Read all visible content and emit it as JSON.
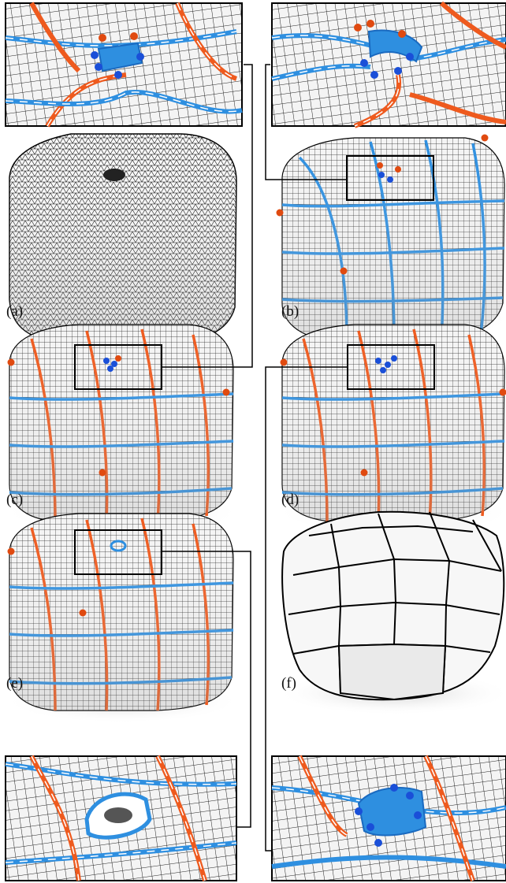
{
  "figure": {
    "panels": [
      {
        "id": "a",
        "label": "(a)",
        "content": "triangle-mesh"
      },
      {
        "id": "b",
        "label": "(b)",
        "content": "quad-layout-mesh"
      },
      {
        "id": "c",
        "label": "(c)",
        "content": "quad-layout-mesh"
      },
      {
        "id": "d",
        "label": "(d)",
        "content": "quad-layout-mesh"
      },
      {
        "id": "e",
        "label": "(e)",
        "content": "quad-layout-mesh"
      },
      {
        "id": "f",
        "label": "(f)",
        "content": "coarse-quad-mesh"
      }
    ],
    "insets": [
      {
        "id": "top-left",
        "links_to": "c"
      },
      {
        "id": "top-right",
        "links_to": "b"
      },
      {
        "id": "bottom-left",
        "links_to": "e"
      },
      {
        "id": "bottom-right",
        "links_to": "d"
      }
    ],
    "colors": {
      "separatrix_orange": "#ee5a1e",
      "separatrix_blue": "#2e8fe0",
      "singularity_red": "#e04a10",
      "singularity_blue": "#1a4fd8",
      "mesh_line": "#1a1a1a",
      "surface": "#f2f2f2",
      "frame": "#000000"
    }
  }
}
